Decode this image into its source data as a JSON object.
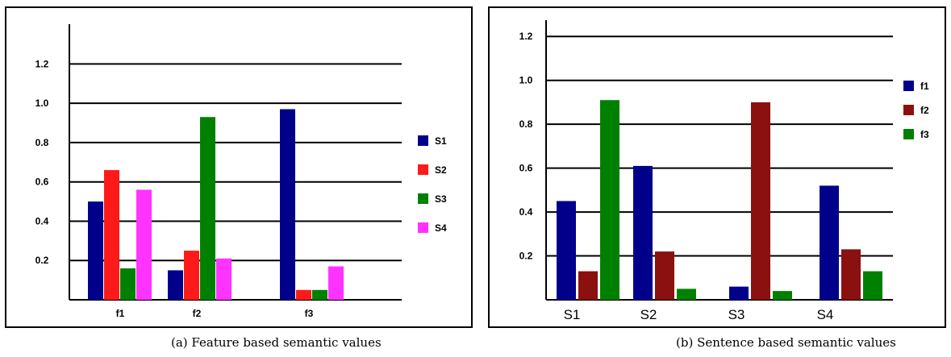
{
  "chart_data": [
    {
      "type": "bar",
      "caption": "(a) Feature based semantic values",
      "categories": [
        "f1",
        "f2",
        "f3"
      ],
      "y_ticks": [
        "0.2",
        "0.4",
        "0.6",
        "0.8",
        "1.0",
        "1.2"
      ],
      "ylim": [
        0,
        1.3
      ],
      "grid": true,
      "legend_position": "right",
      "series": [
        {
          "name": "S1",
          "color": "#00008b",
          "values": [
            0.5,
            0.15,
            0.97
          ]
        },
        {
          "name": "S2",
          "color": "#ff1a1a",
          "values": [
            0.66,
            0.25,
            0.05
          ]
        },
        {
          "name": "S3",
          "color": "#008000",
          "values": [
            0.16,
            0.93,
            0.05
          ]
        },
        {
          "name": "S4",
          "color": "#ff33ff",
          "values": [
            0.56,
            0.21,
            0.17
          ]
        }
      ]
    },
    {
      "type": "bar",
      "caption": "(b) Sentence based semantic values",
      "categories": [
        "S1",
        "S2",
        "S3",
        "S4"
      ],
      "y_ticks": [
        "0.2",
        "0.4",
        "0.6",
        "0.8",
        "1.0",
        "1.2"
      ],
      "ylim": [
        0,
        1.3
      ],
      "grid": true,
      "legend_position": "right",
      "series": [
        {
          "name": "f1",
          "color": "#00008b",
          "values": [
            0.45,
            0.61,
            0.06,
            0.52
          ]
        },
        {
          "name": "f2",
          "color": "#8b1010",
          "values": [
            0.13,
            0.22,
            0.9,
            0.23
          ]
        },
        {
          "name": "f3",
          "color": "#008000",
          "values": [
            0.91,
            0.05,
            0.04,
            0.13
          ]
        }
      ]
    }
  ]
}
